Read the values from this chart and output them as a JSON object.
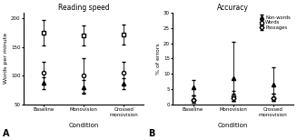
{
  "conditions": [
    "Baseline",
    "Monovision",
    "Crossed\nmonovision"
  ],
  "reading_speed": {
    "passages": {
      "means": [
        175,
        170,
        172
      ],
      "err_low": [
        22,
        18,
        18
      ],
      "err_high": [
        22,
        18,
        18
      ]
    },
    "words": {
      "means": [
        105,
        100,
        105
      ],
      "err_low": [
        20,
        30,
        20
      ],
      "err_high": [
        20,
        30,
        20
      ]
    },
    "nonwords": {
      "means": [
        87,
        80,
        86
      ],
      "err_low": [
        10,
        12,
        10
      ],
      "err_high": [
        10,
        12,
        10
      ]
    }
  },
  "accuracy": {
    "nonwords": {
      "means": [
        5.5,
        8.5,
        6.5
      ],
      "err_low": [
        2.5,
        7.5,
        4.5
      ],
      "err_high": [
        2.5,
        12.0,
        5.5
      ]
    },
    "words": {
      "means": [
        1.5,
        2.5,
        2.0
      ],
      "err_low": [
        1.0,
        1.5,
        1.0
      ],
      "err_high": [
        1.5,
        2.0,
        1.5
      ]
    },
    "passages": {
      "means": [
        1.5,
        2.0,
        2.0
      ],
      "err_low": [
        1.0,
        1.0,
        1.0
      ],
      "err_high": [
        1.5,
        1.5,
        1.5
      ]
    }
  },
  "title_left": "Reading speed",
  "title_right": "Accuracy",
  "ylabel_left": "Words per minute",
  "ylabel_right": "% of errors",
  "xlabel": "Condition",
  "label_A": "A",
  "label_B": "B",
  "legend_labels": [
    "Non-words",
    "Words",
    "Passages"
  ],
  "ylim_left": [
    50,
    210
  ],
  "ylim_right": [
    0,
    30
  ],
  "yticks_left": [
    50,
    100,
    150,
    200
  ],
  "yticks_right": [
    0,
    5,
    10,
    15,
    20,
    25,
    30
  ],
  "figsize": [
    3.27,
    1.54
  ],
  "dpi": 100
}
